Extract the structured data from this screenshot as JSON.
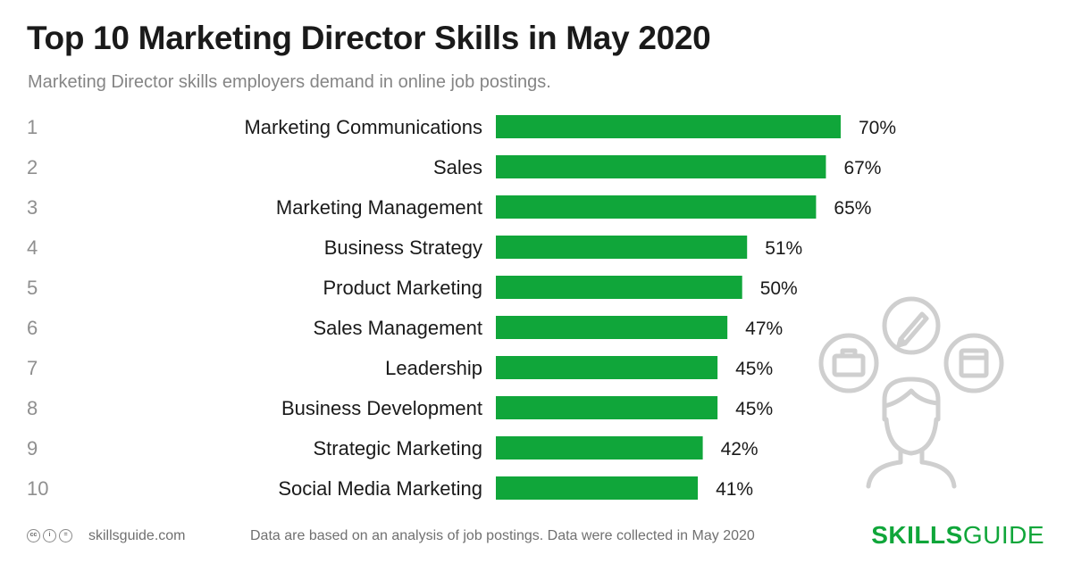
{
  "header": {
    "title": "Top 10 Marketing Director Skills in May 2020",
    "subtitle": "Marketing Director skills employers demand in online job postings."
  },
  "colors": {
    "bar": "#10a63a",
    "brand": "#10a63a",
    "icon": "#cfcfcf"
  },
  "chart_data": {
    "type": "bar",
    "orientation": "horizontal",
    "title": "Top 10 Marketing Director Skills in May 2020",
    "subtitle": "Marketing Director skills employers demand in online job postings.",
    "ranks": [
      "1",
      "2",
      "3",
      "4",
      "5",
      "6",
      "7",
      "8",
      "9",
      "10"
    ],
    "categories": [
      "Marketing Communications",
      "Sales",
      "Marketing Management",
      "Business Strategy",
      "Product Marketing",
      "Sales Management",
      "Leadership",
      "Business Development",
      "Strategic Marketing",
      "Social Media Marketing"
    ],
    "values": [
      70,
      67,
      65,
      51,
      50,
      47,
      45,
      45,
      42,
      41
    ],
    "value_labels": [
      "70%",
      "67%",
      "65%",
      "51%",
      "50%",
      "47%",
      "45%",
      "45%",
      "42%",
      "41%"
    ],
    "xlim": [
      0,
      100
    ],
    "grid": false,
    "legend": "none"
  },
  "footer": {
    "license_icons": [
      "cc-icon",
      "by-icon",
      "nd-icon"
    ],
    "license_glyphs": [
      "cc",
      "i",
      "="
    ],
    "site": "skillsguide.com",
    "note": "Data are based on an analysis of job postings. Data were collected in May 2020",
    "brand_bold": "SKILLS",
    "brand_light": "GUIDE"
  }
}
